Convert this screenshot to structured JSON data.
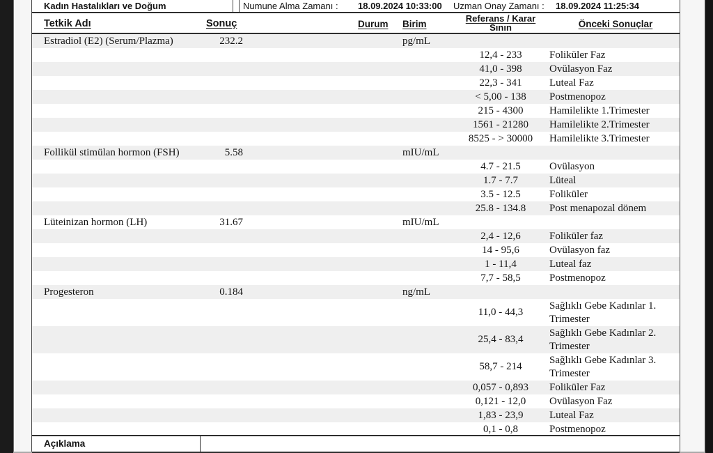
{
  "topbar": {
    "department": "Kadın Hastalıkları ve Doğum",
    "sample_time_label": "Numune Alma Zamanı :",
    "sample_time_value": "18.09.2024 10:33:00",
    "approval_time_label": "Uzman Onay Zamanı :",
    "approval_time_value": "18.09.2024 11:25:34"
  },
  "table": {
    "headers": {
      "test_name": "Tetkik Adı",
      "result": "Sonuç",
      "status": "Durum",
      "unit": "Birim",
      "reference_line1": "Referans / Karar",
      "reference_line2": "Sının",
      "previous": "Önceki Sonuçlar"
    },
    "rows": [
      {
        "type": "test",
        "name": "Estradiol (E2) (Serum/Plazma)",
        "result": "232.2",
        "unit": "pg/mL"
      },
      {
        "type": "ref",
        "range": "12,4 - 233",
        "phase": "Foliküler Faz"
      },
      {
        "type": "ref",
        "range": "41,0 - 398",
        "phase": "Ovülasyon Faz"
      },
      {
        "type": "ref",
        "range": "22,3 - 341",
        "phase": "Luteal Faz"
      },
      {
        "type": "ref",
        "range": "< 5,00 - 138",
        "phase": "Postmenopoz"
      },
      {
        "type": "ref",
        "range": "215 - 4300",
        "phase": "Hamilelikte 1.Trimester"
      },
      {
        "type": "ref",
        "range": "1561 - 21280",
        "phase": "Hamilelikte 2.Trimester"
      },
      {
        "type": "ref",
        "range": "8525 - > 30000",
        "phase": "Hamilelikte 3.Trimester"
      },
      {
        "type": "test",
        "name": "Follikül stimülan hormon (FSH)",
        "result": "5.58",
        "unit": "mIU/mL"
      },
      {
        "type": "ref",
        "range": "4.7 - 21.5",
        "phase": "Ovülasyon"
      },
      {
        "type": "ref",
        "range": "1.7 - 7.7",
        "phase": "Lüteal"
      },
      {
        "type": "ref",
        "range": "3.5 - 12.5",
        "phase": "Foliküler"
      },
      {
        "type": "ref",
        "range": "25.8 - 134.8",
        "phase": "Post menapozal dönem"
      },
      {
        "type": "test",
        "name": "Lüteinizan hormon (LH)",
        "result": "31.67",
        "unit": "mIU/mL"
      },
      {
        "type": "ref",
        "range": "2,4 - 12,6",
        "phase": "Foliküler faz"
      },
      {
        "type": "ref",
        "range": "14 - 95,6",
        "phase": "Ovülasyon faz"
      },
      {
        "type": "ref",
        "range": "1 - 11,4",
        "phase": "Luteal faz"
      },
      {
        "type": "ref",
        "range": "7,7 - 58,5",
        "phase": "Postmenopoz"
      },
      {
        "type": "test",
        "name": "Progesteron",
        "result": "0.184",
        "unit": "ng/mL"
      },
      {
        "type": "ref",
        "range": "11,0 - 44,3",
        "phase": "Sağlıklı Gebe Kadınlar 1. Trimester",
        "tall": true
      },
      {
        "type": "ref",
        "range": "25,4 - 83,4",
        "phase": "Sağlıklı Gebe Kadınlar 2. Trimester",
        "tall": true
      },
      {
        "type": "ref",
        "range": "58,7 - 214",
        "phase": "Sağlıklı Gebe Kadınlar 3. Trimester",
        "tall": true
      },
      {
        "type": "ref",
        "range": "0,057 - 0,893",
        "phase": "Foliküler Faz"
      },
      {
        "type": "ref",
        "range": "0,121 - 12,0",
        "phase": "Ovülasyon Faz"
      },
      {
        "type": "ref",
        "range": "1,83 - 23,9",
        "phase": "Luteal Faz"
      },
      {
        "type": "ref",
        "range": "0,1 - 0,8",
        "phase": "Postmenopoz"
      }
    ]
  },
  "footer": {
    "label": "Açıklama",
    "value": ""
  },
  "colors": {
    "row_stripe": "#efefef",
    "table_border": "#2f2f2f",
    "photo_edge": "#1b1b1b"
  }
}
